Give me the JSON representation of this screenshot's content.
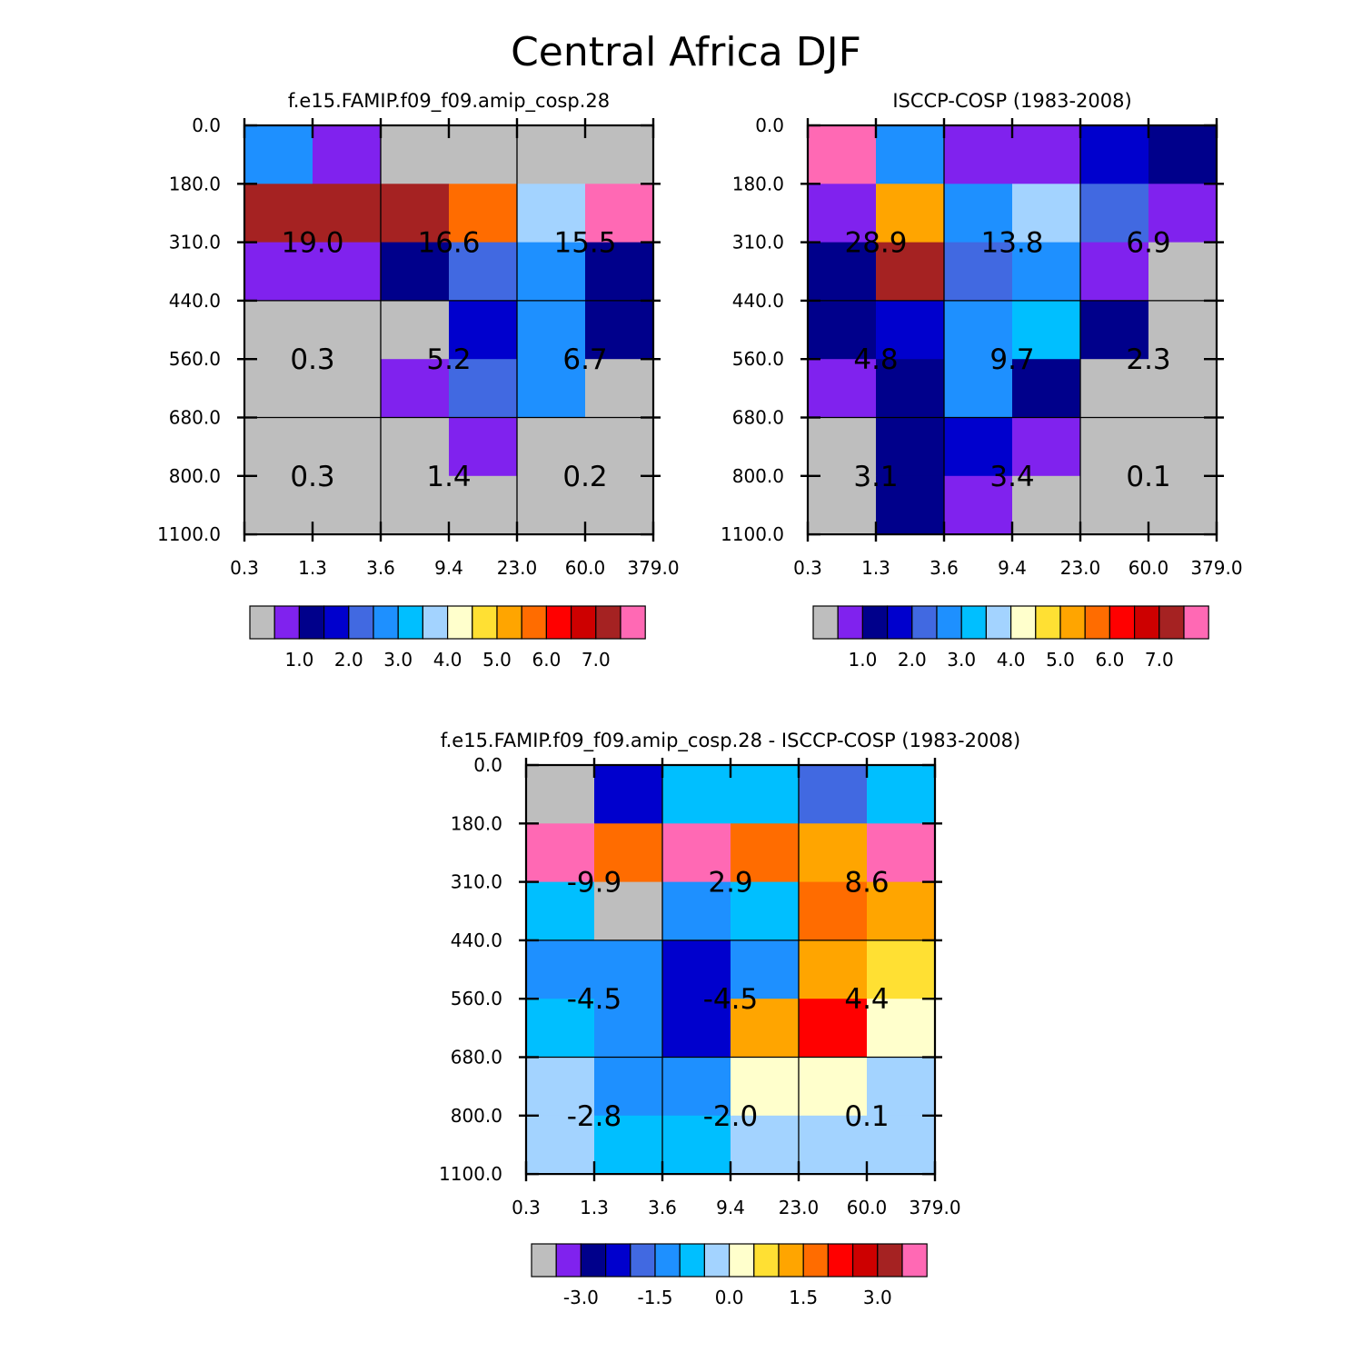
{
  "title": "Central Africa DJF",
  "palette": {
    "gray": "#bebebe",
    "purple": "#8022ee",
    "navy": "#00008b",
    "blue": "#0000cd",
    "royal": "#4169e1",
    "dodger": "#1e90ff",
    "sky": "#00bfff",
    "pale": "#a3d3ff",
    "cream": "#ffffcc",
    "gold": "#ffe033",
    "orange": "#ffa500",
    "darkorange": "#ff6c00",
    "red": "#ff0000",
    "crimson": "#cd0000",
    "brown": "#a52222",
    "pink": "#ff69b4"
  },
  "colorbar": {
    "colors": [
      "gray",
      "purple",
      "navy",
      "blue",
      "royal",
      "dodger",
      "sky",
      "pale",
      "cream",
      "gold",
      "orange",
      "darkorange",
      "red",
      "crimson",
      "brown",
      "pink"
    ]
  },
  "chart_data": [
    {
      "type": "heatmap",
      "name": "model",
      "title": "f.e15.FAMIP.f09_f09.amip_cosp.28",
      "x_ticks": [
        "0.3",
        "1.3",
        "3.6",
        "9.4",
        "23.0",
        "60.0",
        "379.0"
      ],
      "y_ticks": [
        "0.0",
        "180.0",
        "310.0",
        "440.0",
        "560.0",
        "680.0",
        "800.0",
        "1100.0"
      ],
      "cells": [
        [
          "dodger",
          "purple",
          "gray",
          "gray",
          "gray",
          "gray"
        ],
        [
          "brown",
          "brown",
          "brown",
          "darkorange",
          "pale",
          "pink"
        ],
        [
          "purple",
          "purple",
          "navy",
          "royal",
          "dodger",
          "navy"
        ],
        [
          "gray",
          "gray",
          "gray",
          "blue",
          "dodger",
          "navy"
        ],
        [
          "gray",
          "gray",
          "purple",
          "royal",
          "dodger",
          "gray"
        ],
        [
          "gray",
          "gray",
          "gray",
          "purple",
          "gray",
          "gray"
        ],
        [
          "gray",
          "gray",
          "gray",
          "gray",
          "gray",
          "gray"
        ]
      ],
      "group_values": [
        [
          "19.0",
          "16.6",
          "15.5"
        ],
        [
          "0.3",
          "5.2",
          "6.7"
        ],
        [
          "0.3",
          "1.4",
          "0.2"
        ]
      ],
      "colorbar_labels": [
        "1.0",
        "2.0",
        "3.0",
        "4.0",
        "5.0",
        "6.0",
        "7.0"
      ]
    },
    {
      "type": "heatmap",
      "name": "obs",
      "title": "ISCCP-COSP (1983-2008)",
      "x_ticks": [
        "0.3",
        "1.3",
        "3.6",
        "9.4",
        "23.0",
        "60.0",
        "379.0"
      ],
      "y_ticks": [
        "0.0",
        "180.0",
        "310.0",
        "440.0",
        "560.0",
        "680.0",
        "800.0",
        "1100.0"
      ],
      "cells": [
        [
          "pink",
          "dodger",
          "purple",
          "purple",
          "blue",
          "navy"
        ],
        [
          "purple",
          "orange",
          "dodger",
          "pale",
          "royal",
          "purple"
        ],
        [
          "navy",
          "brown",
          "royal",
          "dodger",
          "purple",
          "gray"
        ],
        [
          "navy",
          "blue",
          "dodger",
          "sky",
          "navy",
          "gray"
        ],
        [
          "purple",
          "navy",
          "dodger",
          "navy",
          "gray",
          "gray"
        ],
        [
          "gray",
          "navy",
          "blue",
          "purple",
          "gray",
          "gray"
        ],
        [
          "gray",
          "navy",
          "purple",
          "gray",
          "gray",
          "gray"
        ]
      ],
      "group_values": [
        [
          "28.9",
          "13.8",
          "6.9"
        ],
        [
          "4.8",
          "9.7",
          "2.3"
        ],
        [
          "3.1",
          "3.4",
          "0.1"
        ]
      ],
      "colorbar_labels": [
        "1.0",
        "2.0",
        "3.0",
        "4.0",
        "5.0",
        "6.0",
        "7.0"
      ]
    },
    {
      "type": "heatmap",
      "name": "diff",
      "title": "f.e15.FAMIP.f09_f09.amip_cosp.28 - ISCCP-COSP (1983-2008)",
      "x_ticks": [
        "0.3",
        "1.3",
        "3.6",
        "9.4",
        "23.0",
        "60.0",
        "379.0"
      ],
      "y_ticks": [
        "0.0",
        "180.0",
        "310.0",
        "440.0",
        "560.0",
        "680.0",
        "800.0",
        "1100.0"
      ],
      "cells": [
        [
          "gray",
          "blue",
          "sky",
          "sky",
          "royal",
          "sky"
        ],
        [
          "pink",
          "darkorange",
          "pink",
          "darkorange",
          "orange",
          "pink"
        ],
        [
          "sky",
          "gray",
          "dodger",
          "sky",
          "darkorange",
          "orange"
        ],
        [
          "dodger",
          "dodger",
          "blue",
          "dodger",
          "orange",
          "gold"
        ],
        [
          "sky",
          "dodger",
          "blue",
          "orange",
          "red",
          "cream"
        ],
        [
          "pale",
          "dodger",
          "dodger",
          "cream",
          "cream",
          "pale"
        ],
        [
          "pale",
          "sky",
          "sky",
          "pale",
          "pale",
          "pale"
        ]
      ],
      "group_values": [
        [
          "-9.9",
          "2.9",
          "8.6"
        ],
        [
          "-4.5",
          "-4.5",
          "4.4"
        ],
        [
          "-2.8",
          "-2.0",
          "0.1"
        ]
      ],
      "colorbar_labels": [
        "-3.0",
        "-1.5",
        "0.0",
        "1.5",
        "3.0"
      ]
    }
  ]
}
